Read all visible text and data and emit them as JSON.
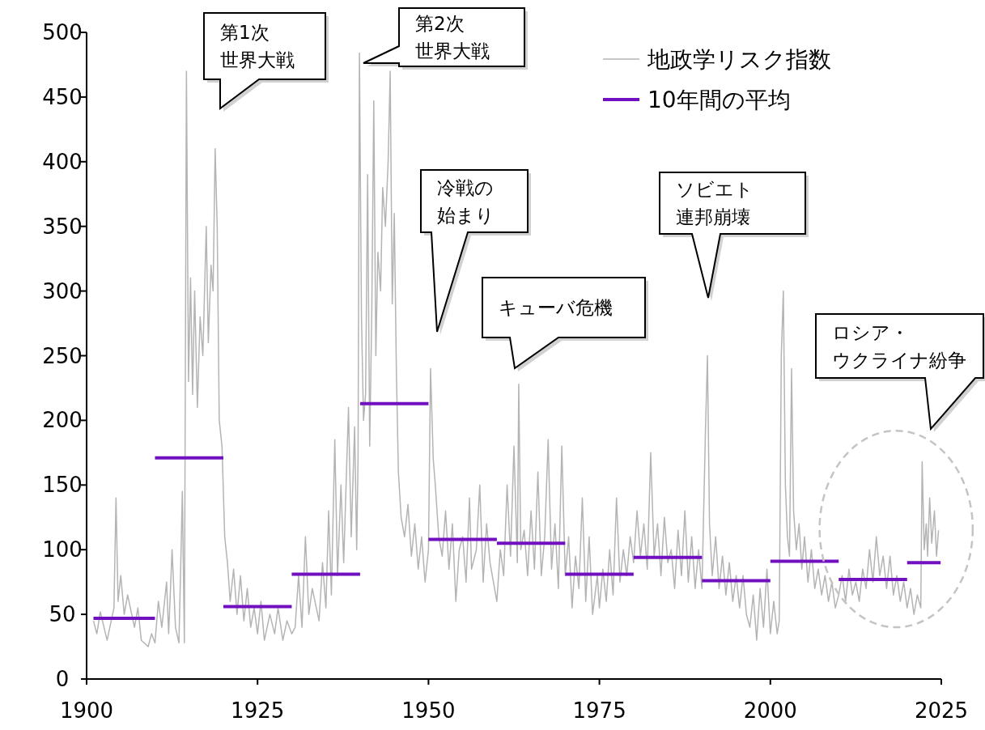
{
  "chart_data": {
    "type": "line",
    "xlim": [
      1900,
      2025
    ],
    "ylim": [
      0,
      500
    ],
    "xticks": [
      1900,
      1925,
      1950,
      1975,
      2000,
      2025
    ],
    "yticks": [
      0,
      50,
      100,
      150,
      200,
      250,
      300,
      350,
      400,
      450,
      500
    ],
    "grid": false,
    "legend": "top right",
    "marker": "none",
    "series": [
      {
        "name": "地政学リスク指数",
        "color": "#b4b4b4",
        "x": [
          1901,
          1901.5,
          1902,
          1903,
          1904,
          1904.3,
          1904.6,
          1905,
          1905.5,
          1906,
          1907,
          1907.5,
          1908,
          1909,
          1909.5,
          1910,
          1910.5,
          1911,
          1911.7,
          1912,
          1912.5,
          1913,
          1913.5,
          1913.8,
          1914.0,
          1914.3,
          1914.6,
          1914.9,
          1915.2,
          1915.5,
          1915.8,
          1916.2,
          1916.6,
          1917,
          1917.5,
          1917.8,
          1918.2,
          1918.5,
          1918.8,
          1919.1,
          1919.4,
          1919.8,
          1920.2,
          1920.6,
          1921,
          1921.5,
          1922,
          1922.5,
          1923,
          1923.5,
          1924,
          1924.5,
          1925,
          1925.5,
          1926,
          1926.8,
          1927.5,
          1928,
          1928.7,
          1929.3,
          1930,
          1930.5,
          1931,
          1931.5,
          1932,
          1932.5,
          1933,
          1934,
          1934.5,
          1935,
          1935.4,
          1935.8,
          1936.3,
          1936.7,
          1937.2,
          1937.6,
          1938.3,
          1938.7,
          1939.2,
          1939.5,
          1939.7,
          1939.9,
          1940.2,
          1940.5,
          1940.8,
          1941.1,
          1941.4,
          1941.7,
          1942,
          1942.3,
          1942.6,
          1943,
          1943.3,
          1943.7,
          1944.1,
          1944.4,
          1944.7,
          1945,
          1945.3,
          1945.6,
          1946,
          1946.5,
          1947,
          1947.5,
          1948,
          1948.5,
          1949,
          1949.5,
          1950,
          1950.3,
          1950.7,
          1951,
          1951.5,
          1952,
          1952.5,
          1953,
          1953.5,
          1954,
          1954.5,
          1955,
          1955.5,
          1956,
          1956.3,
          1957,
          1957.5,
          1958,
          1958.5,
          1959,
          1960,
          1960.5,
          1961,
          1961.5,
          1962,
          1962.5,
          1963,
          1963.2,
          1963.5,
          1964,
          1964.5,
          1965,
          1965.5,
          1966,
          1966.5,
          1967,
          1967.5,
          1968,
          1968.5,
          1969,
          1969.5,
          1970,
          1970.5,
          1971,
          1971.5,
          1972,
          1972.5,
          1973,
          1973.5,
          1974,
          1974.7,
          1975,
          1975.5,
          1976,
          1976.5,
          1977,
          1977.5,
          1978,
          1978.5,
          1979,
          1979.5,
          1980,
          1980.5,
          1981,
          1981.5,
          1982,
          1982.5,
          1983,
          1983.5,
          1984,
          1984.5,
          1985,
          1985.5,
          1986,
          1986.5,
          1987,
          1987.5,
          1988,
          1988.5,
          1989,
          1989.5,
          1990,
          1990.5,
          1990.8,
          1991.1,
          1991.5,
          1992,
          1992.5,
          1993,
          1993.5,
          1994,
          1994.5,
          1995,
          1995.5,
          1996,
          1996.5,
          1997,
          1997.5,
          1998,
          1998.5,
          1999,
          1999.5,
          2000,
          2000.5,
          2001,
          2001.3,
          2001.6,
          2001.9,
          2002.2,
          2002.5,
          2002.8,
          2003.1,
          2003.4,
          2003.8,
          2004.2,
          2004.6,
          2005,
          2005.5,
          2006,
          2006.5,
          2007,
          2007.5,
          2008,
          2008.5,
          2009,
          2009.5,
          2010,
          2010.5,
          2011,
          2011.5,
          2012,
          2012.5,
          2013,
          2013.5,
          2014,
          2014.5,
          2015,
          2015.5,
          2016,
          2016.5,
          2017,
          2017.5,
          2018,
          2018.5,
          2019,
          2019.5,
          2020,
          2020.5,
          2021,
          2021.5,
          2022,
          2022.2,
          2022.5,
          2022.8,
          2023,
          2023.3,
          2023.6,
          2024,
          2024.3,
          2024.6
        ],
        "values": [
          45,
          35,
          52,
          30,
          55,
          140,
          60,
          80,
          50,
          65,
          40,
          55,
          30,
          25,
          35,
          28,
          60,
          40,
          75,
          35,
          100,
          40,
          28,
          95,
          145,
          28,
          470,
          230,
          310,
          220,
          300,
          210,
          280,
          250,
          350,
          260,
          320,
          300,
          410,
          350,
          200,
          180,
          110,
          90,
          60,
          85,
          50,
          80,
          45,
          70,
          40,
          55,
          35,
          60,
          30,
          50,
          35,
          55,
          30,
          45,
          35,
          40,
          80,
          40,
          110,
          50,
          70,
          45,
          90,
          55,
          130,
          65,
          185,
          80,
          150,
          90,
          210,
          110,
          195,
          100,
          170,
          484,
          280,
          200,
          220,
          390,
          180,
          280,
          447,
          250,
          330,
          300,
          380,
          350,
          400,
          470,
          290,
          360,
          240,
          160,
          125,
          110,
          135,
          95,
          120,
          85,
          110,
          75,
          100,
          240,
          170,
          150,
          110,
          95,
          130,
          85,
          120,
          60,
          100,
          110,
          75,
          140,
          85,
          100,
          150,
          75,
          120,
          90,
          60,
          100,
          80,
          150,
          95,
          180,
          90,
          228,
          100,
          115,
          80,
          130,
          85,
          160,
          80,
          110,
          185,
          85,
          120,
          70,
          180,
          80,
          110,
          55,
          95,
          70,
          140,
          60,
          110,
          50,
          80,
          55,
          85,
          60,
          100,
          65,
          140,
          75,
          100,
          80,
          110,
          90,
          130,
          95,
          120,
          85,
          175,
          95,
          120,
          80,
          125,
          90,
          100,
          70,
          115,
          80,
          130,
          75,
          110,
          70,
          100,
          70,
          190,
          250,
          120,
          80,
          110,
          70,
          95,
          65,
          90,
          60,
          80,
          55,
          80,
          50,
          40,
          65,
          30,
          70,
          40,
          85,
          35,
          60,
          35,
          45,
          250,
          300,
          150,
          110,
          95,
          240,
          130,
          100,
          120,
          85,
          110,
          75,
          100,
          70,
          85,
          65,
          80,
          60,
          75,
          55,
          65,
          80,
          60,
          85,
          65,
          75,
          60,
          85,
          70,
          100,
          75,
          110,
          80,
          95,
          70,
          95,
          65,
          80,
          60,
          75,
          55,
          70,
          50,
          65,
          55,
          168,
          100,
          120,
          95,
          140,
          105,
          130,
          95,
          115
        ]
      },
      {
        "name": "10年間の平均",
        "type": "step",
        "color": "#7010c0",
        "x": [
          1901,
          1910,
          1910,
          1920,
          1920,
          1930,
          1930,
          1940,
          1940,
          1950,
          1950,
          1960,
          1960,
          1970,
          1970,
          1980,
          1980,
          1990,
          1990,
          2000,
          2000,
          2010,
          2010,
          2020,
          2020,
          2024.9
        ],
        "values": [
          47,
          47,
          171,
          171,
          56,
          56,
          81,
          81,
          213,
          213,
          108,
          108,
          105,
          105,
          81,
          81,
          94,
          94,
          76,
          76,
          91,
          91,
          77,
          77,
          90,
          90
        ]
      }
    ],
    "annotations": [
      "第1次世界大戦",
      "第2次世界大戦",
      "冷戦の始まり",
      "キューバ危機",
      "ソビエト連邦崩壊",
      "ロシア・ウクライナ紛争"
    ]
  }
}
